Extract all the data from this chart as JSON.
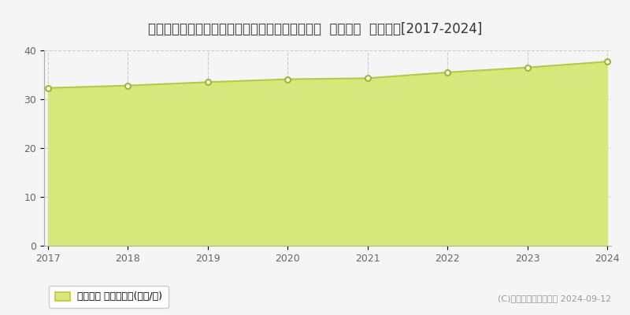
{
  "title": "新潟県新潟市中央区弁天橋通３丁目８５６番１外  地価公示  地価推移[2017-2024]",
  "years": [
    2017,
    2018,
    2019,
    2020,
    2021,
    2022,
    2023,
    2024
  ],
  "values": [
    32.3,
    32.8,
    33.5,
    34.1,
    34.3,
    35.5,
    36.5,
    37.7
  ],
  "ylim": [
    0,
    40
  ],
  "yticks": [
    0,
    10,
    20,
    30,
    40
  ],
  "line_color": "#b8cc30",
  "fill_color": "#d6e87c",
  "fill_alpha": 1.0,
  "marker_color": "white",
  "marker_edge_color": "#a0b828",
  "bg_color": "#f5f5f5",
  "grid_color": "#cccccc",
  "legend_label": "地価公示 平均坪単価(万円/坪)",
  "copyright_text": "(C)土地価格ドットコム 2024-09-12",
  "title_fontsize": 12,
  "axis_fontsize": 9,
  "legend_fontsize": 9
}
